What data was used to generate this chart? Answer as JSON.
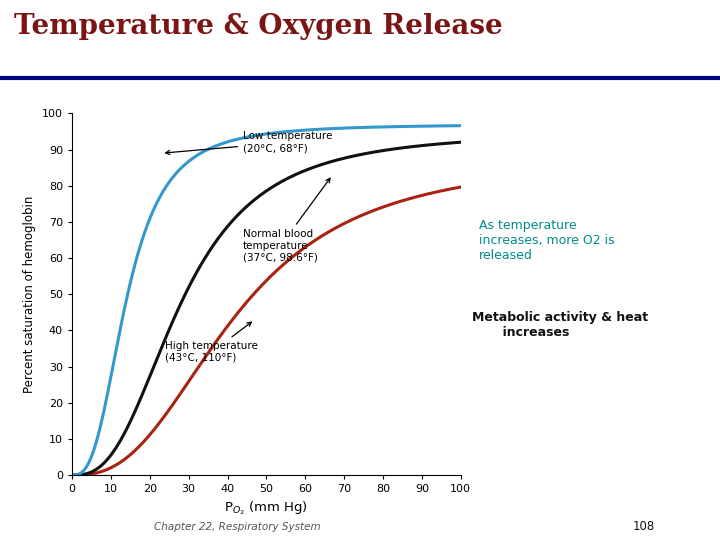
{
  "title": "Temperature & Oxygen Release",
  "title_color": "#7B1515",
  "title_fontsize": 20,
  "background_color": "#FFFFFF",
  "plot_bg_color": "#FFFFFF",
  "xlabel": "P$_{O_2}$ (mm Hg)",
  "ylabel": "Percent saturation of hemoglobin",
  "xlim": [
    0,
    100
  ],
  "ylim": [
    0,
    100
  ],
  "xticks": [
    0,
    10,
    20,
    30,
    40,
    50,
    60,
    70,
    80,
    90,
    100
  ],
  "yticks": [
    0,
    10,
    20,
    30,
    40,
    50,
    60,
    70,
    80,
    90,
    100
  ],
  "curves": {
    "low": {
      "color": "#3399CC",
      "p50": 14,
      "hill_n": 2.8,
      "max_sat": 97
    },
    "normal": {
      "color": "#111111",
      "p50": 28,
      "hill_n": 2.7,
      "max_sat": 95
    },
    "high": {
      "color": "#AA2211",
      "p50": 42,
      "hill_n": 2.6,
      "max_sat": 88
    }
  },
  "annotation_color": "#008B8B",
  "annotation_text": "As temperature\nincreases, more O2 is\nreleased",
  "annotation2_color": "#111111",
  "annotation2_text": "Metabolic activity & heat\n       increases",
  "footer_text": "Chapter 22, Respiratory System",
  "footer_page": "108",
  "title_line_color": "#000080",
  "low_label": "Low temperature\n(20°C, 68°F)",
  "normal_label": "Normal blood\ntemperature\n(37°C, 98.6°F)",
  "high_label": "High temperature\n(43°C, 110°F)"
}
